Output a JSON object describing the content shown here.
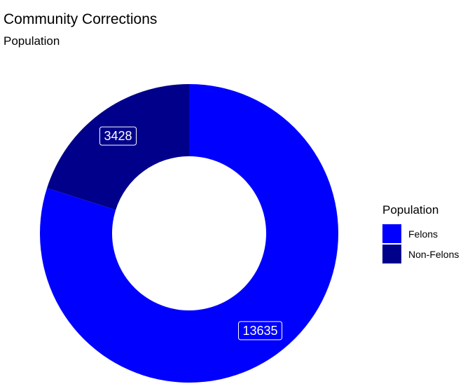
{
  "chart_data": {
    "type": "pie",
    "title": "Community Corrections",
    "subtitle": "Population",
    "legend": {
      "title": "Population",
      "position": "right"
    },
    "categories": [
      "Felons",
      "Non-Felons"
    ],
    "values": [
      13635,
      3428
    ],
    "colors": [
      "#0000ff",
      "#00008b"
    ],
    "data_labels": [
      "13635",
      "3428"
    ],
    "donut": true
  }
}
